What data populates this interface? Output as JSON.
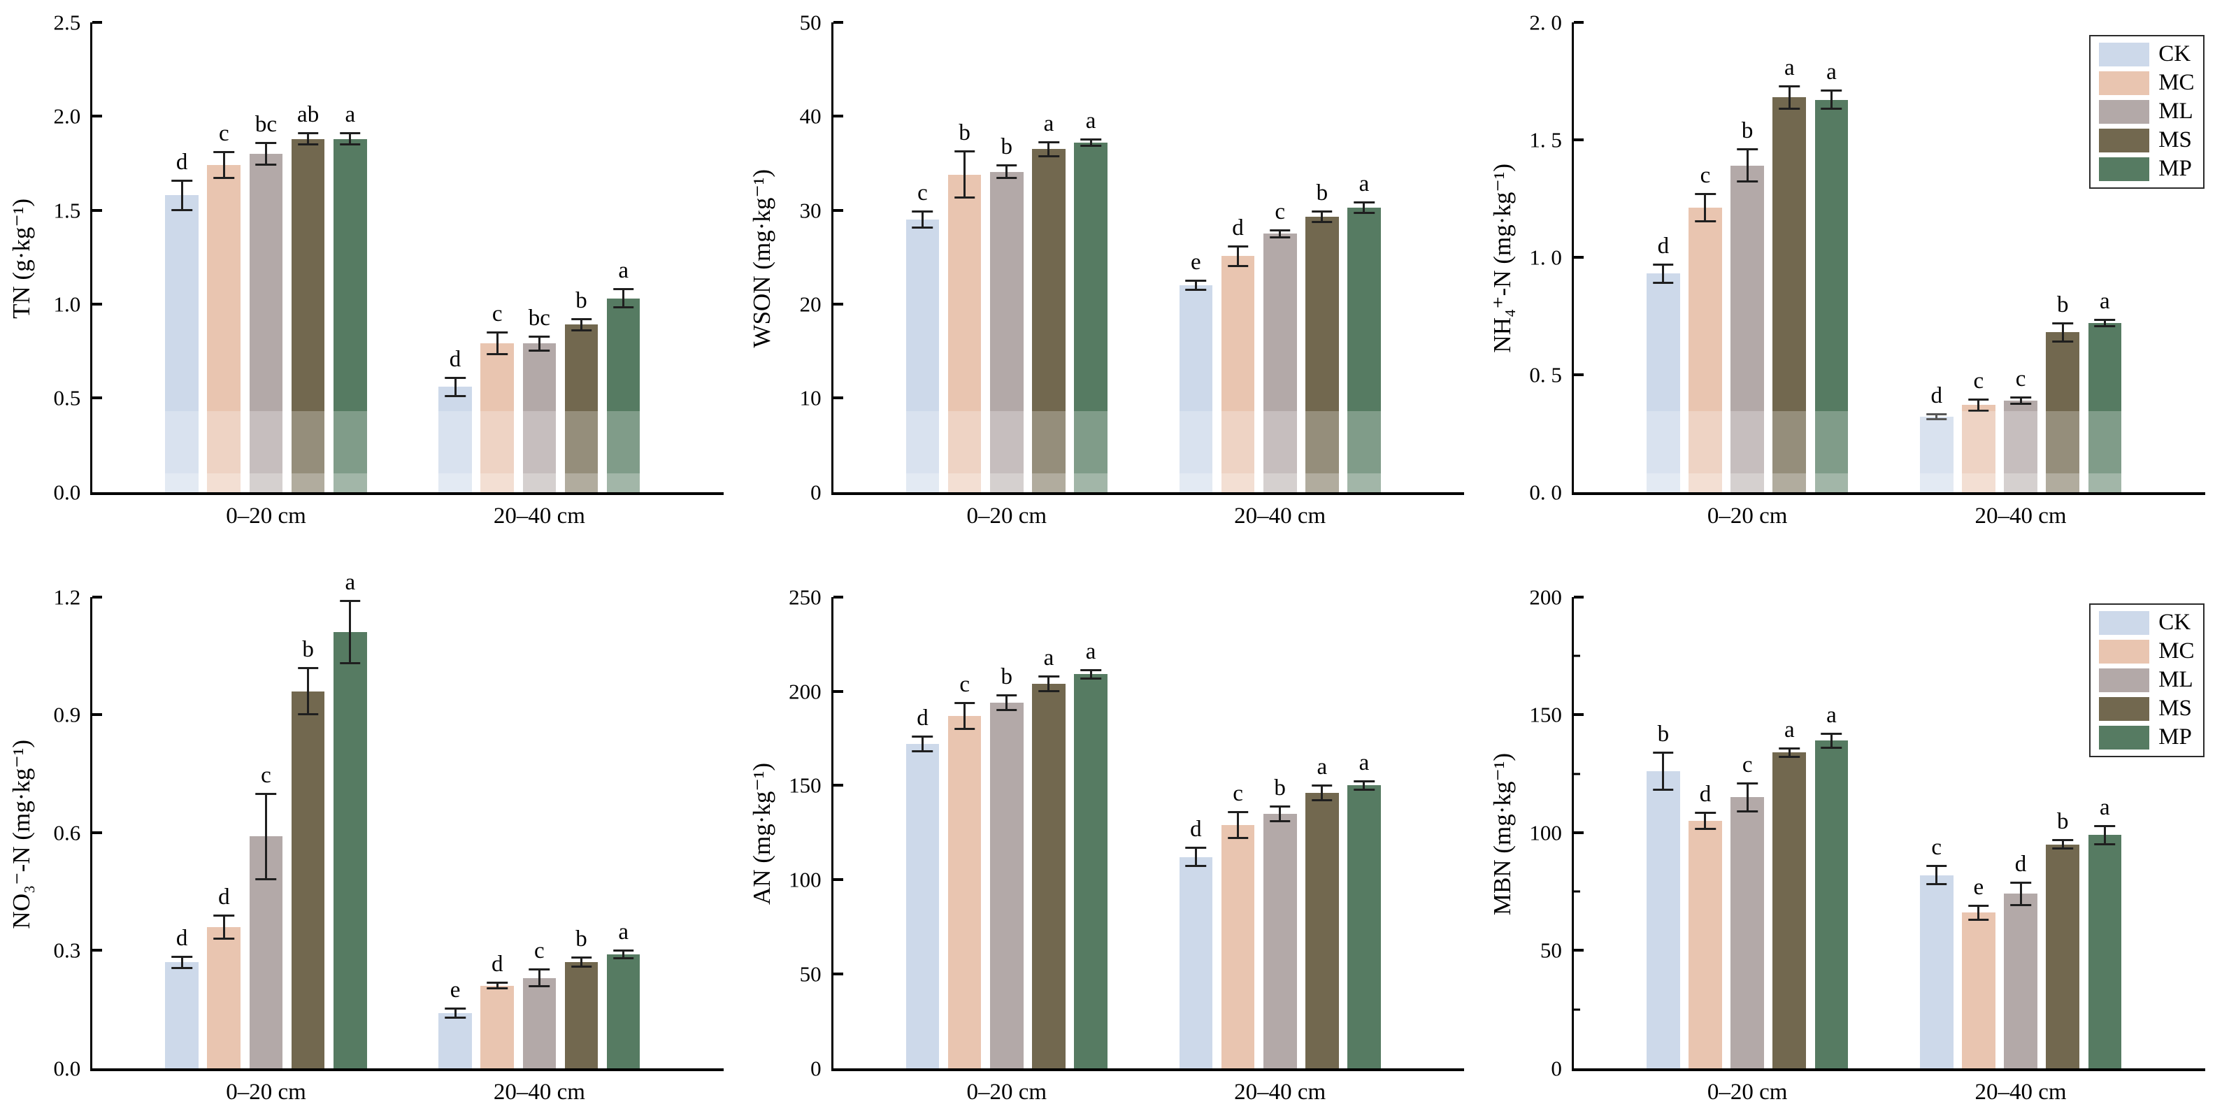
{
  "figure": {
    "background": "#ffffff",
    "description_categories": [
      "0–20 cm",
      "20–40 cm"
    ]
  },
  "treatments": [
    {
      "label": "CK",
      "color": "#cdd9ea"
    },
    {
      "label": "MC",
      "color": "#e9c5b0"
    },
    {
      "label": "ML",
      "color": "#b3a9a8"
    },
    {
      "label": "MS",
      "color": "#72684f"
    },
    {
      "label": "MP",
      "color": "#567b62"
    }
  ],
  "style": {
    "error_bar_color": "#1f1f1f",
    "axis_color": "#000000"
  },
  "chart_data": [
    {
      "type": "bar",
      "id": "tn",
      "ylabel": "TN (g·kg⁻¹)",
      "ylim": [
        0,
        2.5
      ],
      "yticks": [
        {
          "label": "0.0",
          "value": 0
        },
        {
          "label": "0.5",
          "value": 0.5
        },
        {
          "label": "1.0",
          "value": 1.0
        },
        {
          "label": "1.5",
          "value": 1.5
        },
        {
          "label": "2.0",
          "value": 2.0
        },
        {
          "label": "2.5",
          "value": 2.5
        }
      ],
      "yticks_minor": [],
      "categories": [
        "0–20 cm",
        "20–40 cm"
      ],
      "series": [
        {
          "name": "CK",
          "values": [
            1.58,
            0.56
          ],
          "errors": [
            0.08,
            0.05
          ],
          "letters": [
            "d",
            "d"
          ]
        },
        {
          "name": "MC",
          "values": [
            1.74,
            0.79
          ],
          "errors": [
            0.07,
            0.06
          ],
          "letters": [
            "c",
            "c"
          ]
        },
        {
          "name": "ML",
          "values": [
            1.8,
            0.79
          ],
          "errors": [
            0.06,
            0.04
          ],
          "letters": [
            "bc",
            "bc"
          ]
        },
        {
          "name": "MS",
          "values": [
            1.88,
            0.89
          ],
          "errors": [
            0.03,
            0.03
          ],
          "letters": [
            "ab",
            "b"
          ]
        },
        {
          "name": "MP",
          "values": [
            1.88,
            1.03
          ],
          "errors": [
            0.03,
            0.05
          ],
          "letters": [
            "a",
            "a"
          ]
        }
      ],
      "legend": false,
      "fade": true
    },
    {
      "type": "bar",
      "id": "wson",
      "ylabel": "WSON (mg·kg⁻¹)",
      "ylim": [
        0,
        50
      ],
      "yticks": [
        {
          "label": "0",
          "value": 0
        },
        {
          "label": "10",
          "value": 10
        },
        {
          "label": "20",
          "value": 20
        },
        {
          "label": "30",
          "value": 30
        },
        {
          "label": "40",
          "value": 40
        },
        {
          "label": "50",
          "value": 50
        }
      ],
      "yticks_minor": [],
      "categories": [
        "0–20 cm",
        "20–40 cm"
      ],
      "series": [
        {
          "name": "CK",
          "values": [
            29.0,
            22.0
          ],
          "errors": [
            0.9,
            0.5
          ],
          "letters": [
            "c",
            "e"
          ]
        },
        {
          "name": "MC",
          "values": [
            33.8,
            25.1
          ],
          "errors": [
            2.5,
            1.1
          ],
          "letters": [
            "b",
            "d"
          ]
        },
        {
          "name": "ML",
          "values": [
            34.1,
            27.5
          ],
          "errors": [
            0.7,
            0.4
          ],
          "letters": [
            "b",
            "c"
          ]
        },
        {
          "name": "MS",
          "values": [
            36.5,
            29.3
          ],
          "errors": [
            0.8,
            0.6
          ],
          "letters": [
            "a",
            "b"
          ]
        },
        {
          "name": "MP",
          "values": [
            37.2,
            30.3
          ],
          "errors": [
            0.4,
            0.6
          ],
          "letters": [
            "a",
            "a"
          ]
        }
      ],
      "legend": false,
      "fade": true
    },
    {
      "type": "bar",
      "id": "nh4",
      "ylabel": "NH₄⁺-N (mg·kg⁻¹)",
      "ylim": [
        0,
        2.0
      ],
      "yticks": [
        {
          "label": "0. 0",
          "value": 0
        },
        {
          "label": "0. 5",
          "value": 0.5
        },
        {
          "label": "1. 0",
          "value": 1.0
        },
        {
          "label": "1. 5",
          "value": 1.5
        },
        {
          "label": "2. 0",
          "value": 2.0
        }
      ],
      "yticks_minor": [],
      "categories": [
        "0–20 cm",
        "20–40 cm"
      ],
      "series": [
        {
          "name": "CK",
          "values": [
            0.93,
            0.32
          ],
          "errors": [
            0.04,
            0.012
          ],
          "letters": [
            "d",
            "d"
          ]
        },
        {
          "name": "MC",
          "values": [
            1.21,
            0.37
          ],
          "errors": [
            0.06,
            0.025
          ],
          "letters": [
            "c",
            "c"
          ]
        },
        {
          "name": "ML",
          "values": [
            1.39,
            0.39
          ],
          "errors": [
            0.07,
            0.015
          ],
          "letters": [
            "b",
            "c"
          ]
        },
        {
          "name": "MS",
          "values": [
            1.68,
            0.68
          ],
          "errors": [
            0.05,
            0.04
          ],
          "letters": [
            "a",
            "b"
          ]
        },
        {
          "name": "MP",
          "values": [
            1.67,
            0.72
          ],
          "errors": [
            0.04,
            0.015
          ],
          "letters": [
            "a",
            "a"
          ]
        }
      ],
      "legend": true,
      "fade": true
    },
    {
      "type": "bar",
      "id": "no3",
      "ylabel": "NO₃⁻-N (mg·kg⁻¹)",
      "ylim": [
        0,
        1.2
      ],
      "yticks": [
        {
          "label": "0.0",
          "value": 0
        },
        {
          "label": "0.3",
          "value": 0.3
        },
        {
          "label": "0.6",
          "value": 0.6
        },
        {
          "label": "0.9",
          "value": 0.9
        },
        {
          "label": "1.2",
          "value": 1.2
        }
      ],
      "yticks_minor": [],
      "categories": [
        "0–20 cm",
        "20–40 cm"
      ],
      "series": [
        {
          "name": "CK",
          "values": [
            0.27,
            0.14
          ],
          "errors": [
            0.015,
            0.012
          ],
          "letters": [
            "d",
            "e"
          ]
        },
        {
          "name": "MC",
          "values": [
            0.36,
            0.21
          ],
          "errors": [
            0.03,
            0.008
          ],
          "letters": [
            "d",
            "d"
          ]
        },
        {
          "name": "ML",
          "values": [
            0.59,
            0.23
          ],
          "errors": [
            0.11,
            0.022
          ],
          "letters": [
            "c",
            "c"
          ]
        },
        {
          "name": "MS",
          "values": [
            0.96,
            0.27
          ],
          "errors": [
            0.06,
            0.012
          ],
          "letters": [
            "b",
            "b"
          ]
        },
        {
          "name": "MP",
          "values": [
            1.11,
            0.29
          ],
          "errors": [
            0.08,
            0.01
          ],
          "letters": [
            "a",
            "a"
          ]
        }
      ],
      "legend": false,
      "fade": false
    },
    {
      "type": "bar",
      "id": "an",
      "ylabel": "AN (mg·kg⁻¹)",
      "ylim": [
        0,
        250
      ],
      "yticks": [
        {
          "label": "0",
          "value": 0
        },
        {
          "label": "50",
          "value": 50
        },
        {
          "label": "100",
          "value": 100
        },
        {
          "label": "150",
          "value": 150
        },
        {
          "label": "200",
          "value": 200
        },
        {
          "label": "250",
          "value": 250
        }
      ],
      "yticks_minor": [],
      "categories": [
        "0–20 cm",
        "20–40 cm"
      ],
      "series": [
        {
          "name": "CK",
          "values": [
            172,
            112
          ],
          "errors": [
            4,
            5
          ],
          "letters": [
            "d",
            "d"
          ]
        },
        {
          "name": "MC",
          "values": [
            187,
            129
          ],
          "errors": [
            7,
            7
          ],
          "letters": [
            "c",
            "c"
          ]
        },
        {
          "name": "ML",
          "values": [
            194,
            135
          ],
          "errors": [
            4,
            4
          ],
          "letters": [
            "b",
            "b"
          ]
        },
        {
          "name": "MS",
          "values": [
            204,
            146
          ],
          "errors": [
            4,
            4
          ],
          "letters": [
            "a",
            "a"
          ]
        },
        {
          "name": "MP",
          "values": [
            209,
            150
          ],
          "errors": [
            2.5,
            2.5
          ],
          "letters": [
            "a",
            "a"
          ]
        }
      ],
      "legend": false,
      "fade": false
    },
    {
      "type": "bar",
      "id": "mbn",
      "ylabel": "MBN (mg·kg⁻¹)",
      "ylim": [
        0,
        200
      ],
      "yticks": [
        {
          "label": "0",
          "value": 0
        },
        {
          "label": "50",
          "value": 50
        },
        {
          "label": "100",
          "value": 100
        },
        {
          "label": "150",
          "value": 150
        },
        {
          "label": "200",
          "value": 200
        }
      ],
      "yticks_minor": [
        25,
        75,
        125,
        175
      ],
      "categories": [
        "0–20 cm",
        "20–40 cm"
      ],
      "series": [
        {
          "name": "CK",
          "values": [
            126,
            82
          ],
          "errors": [
            8,
            4
          ],
          "letters": [
            "b",
            "c"
          ]
        },
        {
          "name": "MC",
          "values": [
            105,
            66
          ],
          "errors": [
            3.5,
            3
          ],
          "letters": [
            "d",
            "e"
          ]
        },
        {
          "name": "ML",
          "values": [
            115,
            74
          ],
          "errors": [
            6,
            5
          ],
          "letters": [
            "c",
            "d"
          ]
        },
        {
          "name": "MS",
          "values": [
            134,
            95
          ],
          "errors": [
            2,
            2
          ],
          "letters": [
            "a",
            "b"
          ]
        },
        {
          "name": "MP",
          "values": [
            139,
            99
          ],
          "errors": [
            3,
            4
          ],
          "letters": [
            "a",
            "a"
          ]
        }
      ],
      "legend": true,
      "fade": false
    }
  ]
}
